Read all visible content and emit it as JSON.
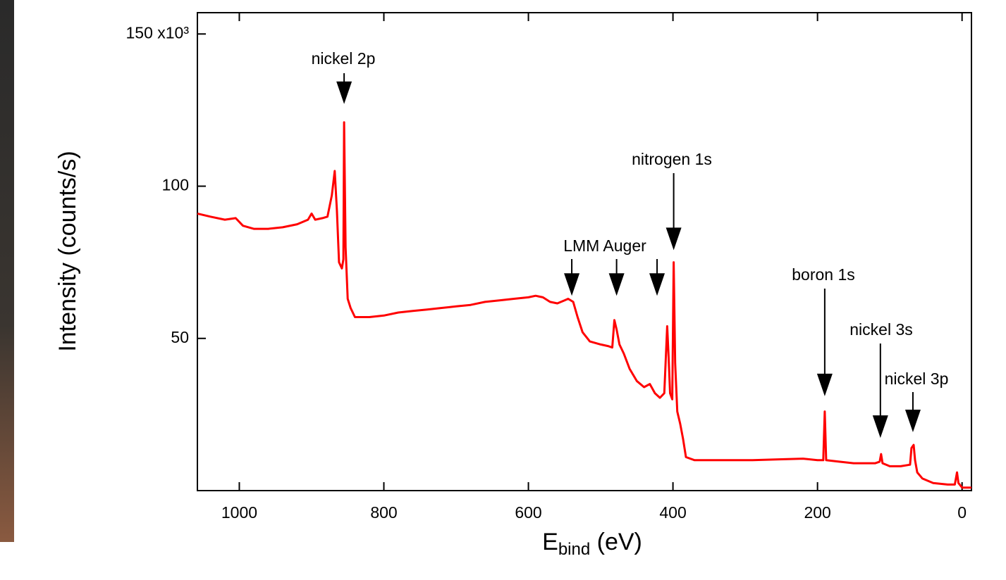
{
  "chart_data": {
    "type": "line",
    "ylabel": "Intensity (counts/s)",
    "xlabel": {
      "main": "E",
      "sub": "bind",
      "rest": " (eV)"
    },
    "xlim": [
      1058,
      -13
    ],
    "ylim": [
      0,
      157
    ],
    "xticks": [
      1000,
      800,
      600,
      400,
      200,
      0
    ],
    "yticks": [
      50,
      100,
      {
        "value": 150,
        "label": "150 x10³"
      }
    ],
    "series": [
      {
        "color": "#ff0000",
        "x": [
          1058,
          1040,
          1020,
          1005,
          995,
          980,
          960,
          940,
          920,
          905,
          900,
          895,
          885,
          878,
          872,
          868,
          865,
          862,
          858,
          856,
          855,
          853,
          850,
          846,
          840,
          820,
          800,
          780,
          760,
          740,
          720,
          700,
          680,
          660,
          640,
          620,
          600,
          590,
          580,
          570,
          560,
          550,
          545,
          538,
          532,
          525,
          515,
          500,
          490,
          484,
          481,
          478,
          474,
          468,
          460,
          450,
          440,
          432,
          425,
          418,
          412,
          408,
          406,
          404,
          401,
          399,
          397,
          394,
          390,
          386,
          382,
          370,
          330,
          290,
          250,
          220,
          200,
          192,
          190,
          188,
          170,
          150,
          120,
          114,
          112,
          110,
          100,
          85,
          72,
          70,
          67,
          65,
          62,
          55,
          40,
          20,
          10,
          7,
          5,
          0,
          -13
        ],
        "values": [
          91,
          90,
          89,
          89.5,
          87,
          86,
          86,
          86.5,
          87.5,
          89,
          91,
          89,
          89.5,
          90,
          97,
          105,
          92,
          75,
          73,
          76,
          121,
          80,
          63,
          60,
          57,
          57,
          57.5,
          58.5,
          59,
          59.5,
          60,
          60.5,
          61,
          62,
          62.5,
          63,
          63.5,
          64,
          63.5,
          62,
          61.5,
          62.5,
          63,
          62,
          57,
          52,
          49,
          48,
          47.5,
          47,
          56,
          53,
          48,
          45,
          40,
          36,
          34,
          35,
          32,
          30.5,
          32,
          54,
          44,
          32,
          30,
          75,
          42,
          26,
          22,
          17,
          11,
          10,
          10,
          10,
          10.3,
          10.5,
          10,
          10,
          26,
          10,
          9.5,
          9,
          9,
          9.5,
          12,
          9,
          8,
          8,
          8.5,
          14,
          15,
          10,
          6,
          4,
          2.5,
          2,
          2,
          6,
          2.5,
          1,
          1
        ]
      }
    ],
    "annotations": [
      {
        "text": "nickel 2p",
        "x": [
          855
        ],
        "y": 127
      },
      {
        "text": "nitrogen 1s",
        "x": [
          399
        ],
        "y": 79
      },
      {
        "text": "LMM Auger",
        "x": [
          540,
          478,
          422
        ],
        "y": 64
      },
      {
        "text": "boron 1s",
        "x": [
          190
        ],
        "y": 31
      },
      {
        "text": "nickel 3s",
        "x": [
          113
        ],
        "y": 17.3
      },
      {
        "text": "nickel 3p",
        "x": [
          68
        ],
        "y": 19.2
      }
    ]
  }
}
